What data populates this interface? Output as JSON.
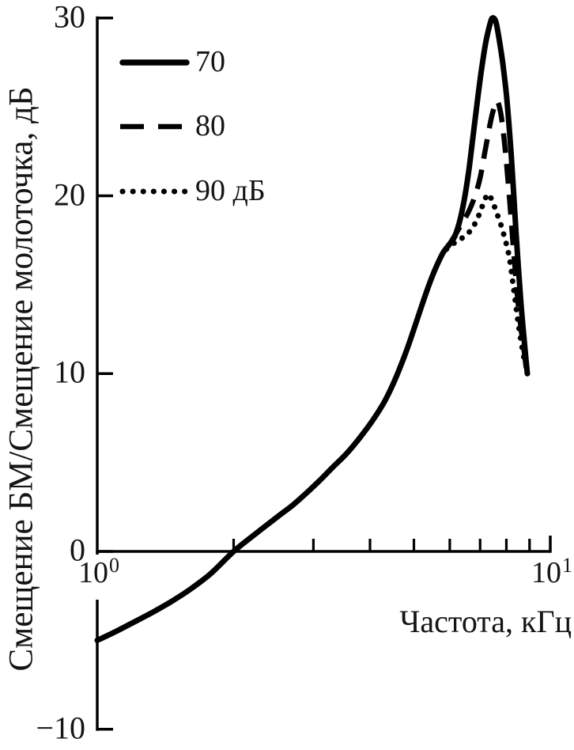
{
  "figure": {
    "background": "#ffffff",
    "ink": "#000000",
    "text_color": "#141414"
  },
  "chart_data": {
    "type": "line",
    "title": "",
    "xlabel": "Частота, кГц",
    "ylabel": "Смещение БМ/Смещение молоточка, дБ",
    "x_scale": "log10",
    "xlim": [
      1,
      10
    ],
    "ylim": [
      -10,
      30
    ],
    "grid": false,
    "legend_position": "upper-left",
    "y_ticks": [
      {
        "value": 30,
        "label": "30"
      },
      {
        "value": 20,
        "label": "20"
      },
      {
        "value": 10,
        "label": "10"
      },
      {
        "value": 0,
        "label": "0"
      },
      {
        "value": -10,
        "label": "−10"
      }
    ],
    "x_major_ticks": [
      {
        "value": 1,
        "mantissa": "10",
        "exponent": "0"
      },
      {
        "value": 10,
        "mantissa": "10",
        "exponent": "1"
      }
    ],
    "x_minor_ticks": [
      2,
      3,
      4,
      5,
      6,
      7,
      8,
      9
    ],
    "series": [
      {
        "name": "70",
        "level_db": 70,
        "style": "solid",
        "points": [
          [
            1.0,
            -5.0
          ],
          [
            1.1,
            -4.5
          ],
          [
            1.2,
            -4.0
          ],
          [
            1.33,
            -3.4
          ],
          [
            1.45,
            -2.85
          ],
          [
            1.6,
            -2.15
          ],
          [
            1.78,
            -1.25
          ],
          [
            2.0,
            0.0
          ],
          [
            2.2,
            0.85
          ],
          [
            2.5,
            1.95
          ],
          [
            2.7,
            2.6
          ],
          [
            2.9,
            3.3
          ],
          [
            3.1,
            4.0
          ],
          [
            3.3,
            4.7
          ],
          [
            3.55,
            5.5
          ],
          [
            3.8,
            6.4
          ],
          [
            4.05,
            7.35
          ],
          [
            4.3,
            8.4
          ],
          [
            4.55,
            9.7
          ],
          [
            4.8,
            11.2
          ],
          [
            5.0,
            12.5
          ],
          [
            5.2,
            13.8
          ],
          [
            5.4,
            15.0
          ],
          [
            5.6,
            16.0
          ],
          [
            5.8,
            16.8
          ],
          [
            6.0,
            17.3
          ],
          [
            6.15,
            17.7
          ],
          [
            6.3,
            18.5
          ],
          [
            6.45,
            19.7
          ],
          [
            6.6,
            21.3
          ],
          [
            6.75,
            23.3
          ],
          [
            6.9,
            25.3
          ],
          [
            7.05,
            27.1
          ],
          [
            7.2,
            28.6
          ],
          [
            7.35,
            29.6
          ],
          [
            7.45,
            30.0
          ],
          [
            7.58,
            29.8
          ],
          [
            7.7,
            28.9
          ],
          [
            7.85,
            27.5
          ],
          [
            8.0,
            25.7
          ],
          [
            8.1,
            24.1
          ],
          [
            8.2,
            22.3
          ],
          [
            8.3,
            20.2
          ],
          [
            8.4,
            18.0
          ],
          [
            8.5,
            16.0
          ],
          [
            8.6,
            14.2
          ],
          [
            8.7,
            12.7
          ],
          [
            8.8,
            11.3
          ],
          [
            8.9,
            10.0
          ]
        ]
      },
      {
        "name": "80",
        "level_db": 80,
        "style": "dashed",
        "points": [
          [
            6.0,
            17.3
          ],
          [
            6.2,
            17.9
          ],
          [
            6.4,
            18.5
          ],
          [
            6.6,
            19.1
          ],
          [
            6.8,
            19.9
          ],
          [
            7.0,
            21.0
          ],
          [
            7.2,
            22.7
          ],
          [
            7.4,
            24.3
          ],
          [
            7.55,
            25.1
          ],
          [
            7.65,
            25.3
          ],
          [
            7.78,
            24.6
          ],
          [
            7.9,
            23.3
          ],
          [
            8.0,
            21.9
          ],
          [
            8.1,
            20.3
          ],
          [
            8.2,
            18.6
          ],
          [
            8.3,
            16.9
          ],
          [
            8.45,
            14.5
          ],
          [
            8.6,
            12.7
          ],
          [
            8.75,
            11.3
          ],
          [
            8.85,
            10.3
          ]
        ]
      },
      {
        "name": "90 дБ",
        "level_db": 90,
        "style": "dotted",
        "points": [
          [
            5.9,
            17.0
          ],
          [
            6.1,
            17.3
          ],
          [
            6.3,
            17.5
          ],
          [
            6.5,
            17.8
          ],
          [
            6.7,
            18.1
          ],
          [
            6.9,
            18.7
          ],
          [
            7.05,
            19.3
          ],
          [
            7.2,
            19.9
          ],
          [
            7.3,
            20.1
          ],
          [
            7.45,
            19.7
          ],
          [
            7.6,
            19.1
          ],
          [
            7.75,
            18.5
          ],
          [
            7.9,
            17.8
          ],
          [
            8.05,
            17.0
          ],
          [
            8.15,
            16.3
          ],
          [
            8.25,
            15.3
          ],
          [
            8.35,
            14.3
          ],
          [
            8.5,
            12.8
          ],
          [
            8.65,
            11.6
          ],
          [
            8.8,
            10.5
          ]
        ]
      }
    ]
  }
}
